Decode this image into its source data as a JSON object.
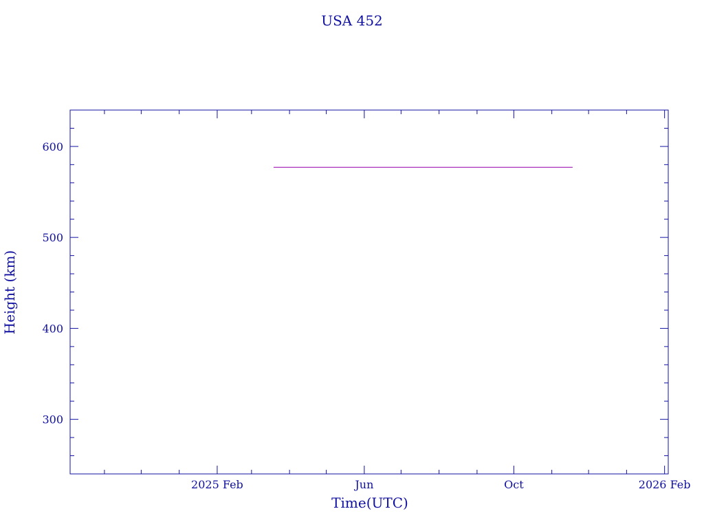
{
  "chart_data": {
    "type": "line",
    "title": "USA 452",
    "xlabel": "Time(UTC)",
    "ylabel": "Height (km)",
    "xlim": [
      "2024-10-04",
      "2026-02-04"
    ],
    "ylim": [
      240,
      640
    ],
    "x_ticks": [
      {
        "date": "2025-02-01",
        "label": "2025 Feb"
      },
      {
        "date": "2025-06-01",
        "label": "Jun"
      },
      {
        "date": "2025-10-01",
        "label": "Oct"
      },
      {
        "date": "2026-02-01",
        "label": "2026 Feb"
      }
    ],
    "y_ticks": [
      300,
      400,
      500,
      600
    ],
    "grid": false,
    "series": [
      {
        "color": "#b040c0",
        "points": [
          [
            "2025-03-19",
            577
          ],
          [
            "2025-11-18",
            577
          ]
        ]
      }
    ],
    "axis_color": "#1010a0"
  }
}
